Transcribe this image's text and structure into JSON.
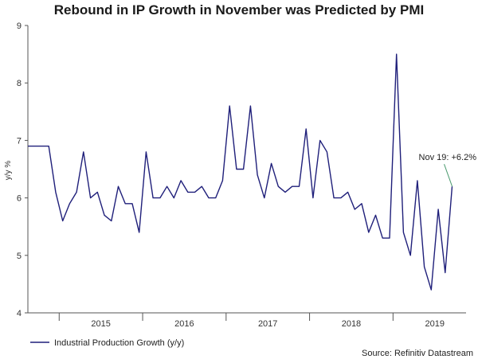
{
  "chart_data": {
    "type": "line",
    "title": "Rebound in IP Growth in November was Predicted by PMI",
    "ylabel": "y/y %",
    "xlabel": "",
    "ylim": [
      4,
      9
    ],
    "yticks": [
      "4",
      "5",
      "6",
      "7",
      "8",
      "9"
    ],
    "xlim": [
      2014.625,
      2019.875
    ],
    "xticks": [
      {
        "label": "2015",
        "value": 2015.5
      },
      {
        "label": "2016",
        "value": 2016.5
      },
      {
        "label": "2017",
        "value": 2017.5
      },
      {
        "label": "2018",
        "value": 2018.5
      },
      {
        "label": "2019",
        "value": 2019.5
      }
    ],
    "year_dividers": [
      2015.0,
      2016.0,
      2017.0,
      2018.0,
      2019.0
    ],
    "series": [
      {
        "name": "Industrial Production Growth (y/y)",
        "color": "#1f1f7a",
        "start": "2014-08",
        "values": [
          6.9,
          6.9,
          6.9,
          6.9,
          6.1,
          5.6,
          5.9,
          6.1,
          6.8,
          6.0,
          6.1,
          5.7,
          5.6,
          6.2,
          5.9,
          5.9,
          5.4,
          6.8,
          6.0,
          6.0,
          6.2,
          6.0,
          6.3,
          6.1,
          6.1,
          6.2,
          6.0,
          6.0,
          6.3,
          7.6,
          6.5,
          6.5,
          7.6,
          6.4,
          6.0,
          6.6,
          6.2,
          6.1,
          6.2,
          6.2,
          7.2,
          6.0,
          7.0,
          6.8,
          6.0,
          6.0,
          6.1,
          5.8,
          5.9,
          5.4,
          5.7,
          5.3,
          5.3,
          8.5,
          5.4,
          5.0,
          6.3,
          4.8,
          4.4,
          5.8,
          4.7,
          6.2
        ]
      }
    ],
    "annotations": [
      {
        "text": "Nov 19: +6.2%",
        "x": 2019.875,
        "y": 6.2
      }
    ],
    "legend": {
      "position": "bottom-left"
    },
    "source": "Source: Refinitiv Datastream"
  },
  "colors": {
    "line": "#1f1f7a",
    "axis": "#555555",
    "annotation_leader": "#4a9a6e"
  }
}
